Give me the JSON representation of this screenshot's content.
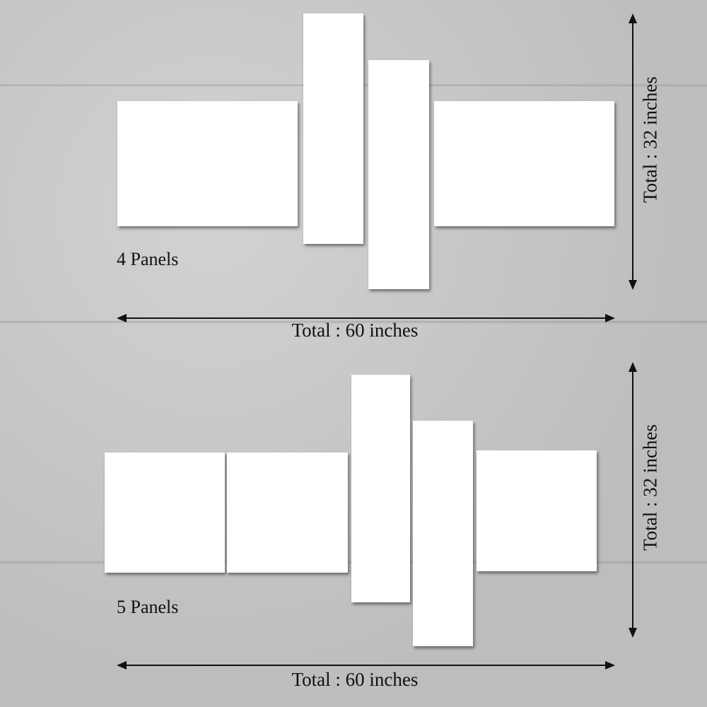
{
  "layouts": [
    {
      "label": "4 Panels",
      "width_total": "Total : 60 inches",
      "height_total": "Total : 32 inches",
      "panel_count": 4
    },
    {
      "label": "5 Panels",
      "width_total": "Total : 60 inches",
      "height_total": "Total : 32 inches",
      "panel_count": 5
    }
  ],
  "colors": {
    "panel": "#ffffff",
    "arrows": "#111111",
    "background": "#c6c6c6"
  }
}
